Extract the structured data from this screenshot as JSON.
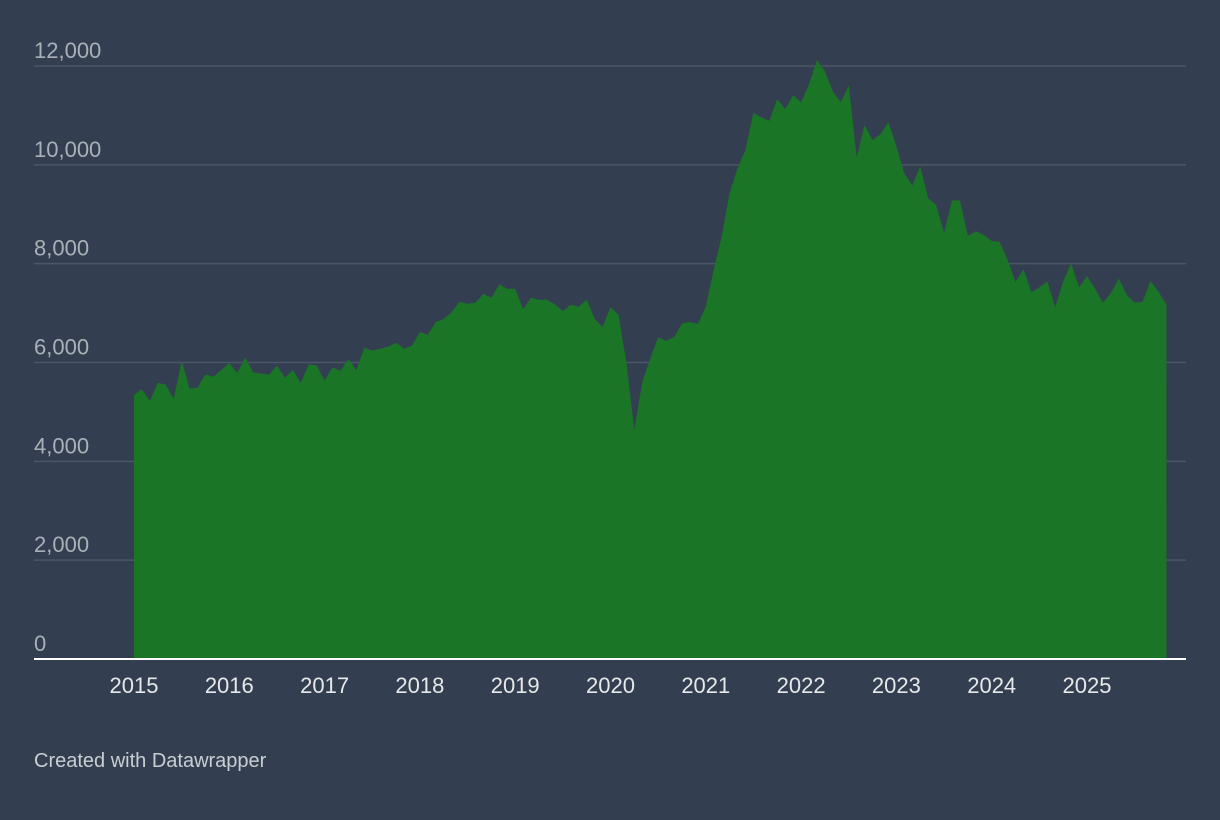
{
  "chart_data": {
    "type": "area",
    "title": "",
    "xlabel": "",
    "ylabel": "",
    "x_start": "2015-01",
    "x_end": "2025-11",
    "frequency": "monthly",
    "ylim": [
      0,
      12000
    ],
    "yticks": [
      0,
      2000,
      4000,
      6000,
      8000,
      10000,
      12000
    ],
    "ytick_labels": [
      "0",
      "2,000",
      "4,000",
      "6,000",
      "8,000",
      "10,000",
      "12,000"
    ],
    "xticks": [
      "2015",
      "2016",
      "2017",
      "2018",
      "2019",
      "2020",
      "2021",
      "2022",
      "2023",
      "2024",
      "2025"
    ],
    "grid": true,
    "legend": "none",
    "colors": {
      "fill": "#1b7526",
      "background": "#333f50",
      "grid": "#4b5666",
      "axis": "#ffffff"
    },
    "values": [
      5340,
      5460,
      5220,
      5590,
      5550,
      5260,
      6030,
      5470,
      5490,
      5760,
      5710,
      5850,
      5990,
      5780,
      6110,
      5800,
      5780,
      5750,
      5940,
      5690,
      5850,
      5590,
      5960,
      5940,
      5630,
      5900,
      5830,
      6070,
      5840,
      6300,
      6240,
      6280,
      6320,
      6400,
      6280,
      6340,
      6620,
      6560,
      6820,
      6880,
      7020,
      7230,
      7190,
      7210,
      7390,
      7310,
      7580,
      7490,
      7490,
      7080,
      7310,
      7270,
      7270,
      7180,
      7040,
      7170,
      7130,
      7270,
      6880,
      6720,
      7120,
      6970,
      5990,
      4640,
      5610,
      6070,
      6510,
      6440,
      6510,
      6790,
      6820,
      6780,
      7130,
      7870,
      8550,
      9430,
      9930,
      10300,
      11050,
      10960,
      10890,
      11330,
      11130,
      11410,
      11260,
      11630,
      12120,
      11890,
      11480,
      11270,
      11600,
      10150,
      10800,
      10500,
      10620,
      10860,
      10370,
      9830,
      9580,
      9970,
      9320,
      9190,
      8620,
      9280,
      9280,
      8560,
      8660,
      8580,
      8460,
      8440,
      8080,
      7630,
      7890,
      7420,
      7520,
      7640,
      7120,
      7640,
      8010,
      7520,
      7750,
      7500,
      7210,
      7400,
      7700,
      7370,
      7210,
      7230,
      7650,
      7430,
      7170
    ]
  },
  "footer": {
    "credit": "Created with Datawrapper"
  }
}
